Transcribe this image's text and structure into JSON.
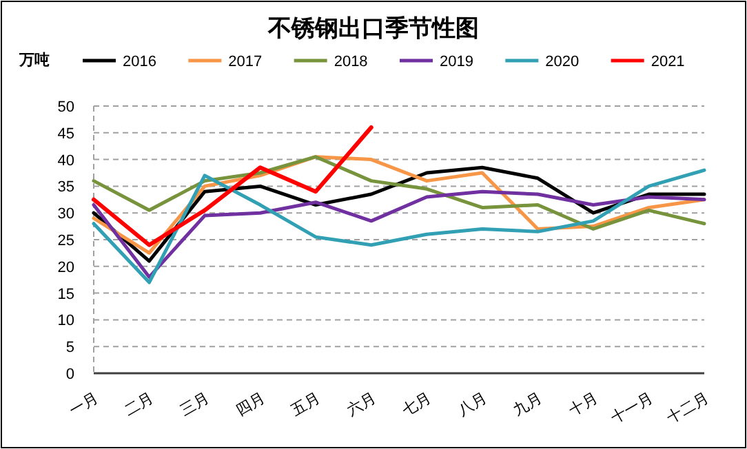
{
  "chart_data": {
    "type": "line",
    "title": "不锈钢出口季节性图",
    "ylabel": "万吨",
    "categories": [
      "一月",
      "二月",
      "三月",
      "四月",
      "五月",
      "六月",
      "七月",
      "八月",
      "九月",
      "十月",
      "十一月",
      "十二月"
    ],
    "ylim": [
      0,
      50
    ],
    "yticks": [
      0,
      5,
      10,
      15,
      20,
      25,
      30,
      35,
      40,
      45,
      50
    ],
    "grid": "y",
    "legend": "top",
    "marker": "none",
    "line_style": "solid",
    "series": [
      {
        "name": "2016",
        "color": "#000000",
        "values": [
          30,
          21,
          34,
          35,
          31.5,
          33.5,
          37.5,
          38.5,
          36.5,
          30,
          33.5,
          33.5
        ]
      },
      {
        "name": "2017",
        "color": "#f79646",
        "values": [
          29,
          22.5,
          35,
          37,
          40.5,
          40,
          36,
          37.5,
          27,
          27.5,
          31,
          32.5
        ]
      },
      {
        "name": "2018",
        "color": "#77933c",
        "values": [
          36,
          30.5,
          36,
          37.5,
          40.5,
          36,
          34.5,
          31,
          31.5,
          27,
          30.5,
          28
        ]
      },
      {
        "name": "2019",
        "color": "#7030a0",
        "values": [
          31.5,
          18,
          29.5,
          30,
          32,
          28.5,
          33,
          34,
          33.5,
          31.5,
          33,
          32.5
        ]
      },
      {
        "name": "2020",
        "color": "#31a0b4",
        "values": [
          28,
          17,
          37,
          31.5,
          25.5,
          24,
          26,
          27,
          26.5,
          28.5,
          35,
          38
        ]
      },
      {
        "name": "2021",
        "color": "#ff0000",
        "values": [
          32.5,
          24,
          30.5,
          38.5,
          34,
          46,
          null,
          null,
          null,
          null,
          null,
          null
        ]
      }
    ]
  }
}
